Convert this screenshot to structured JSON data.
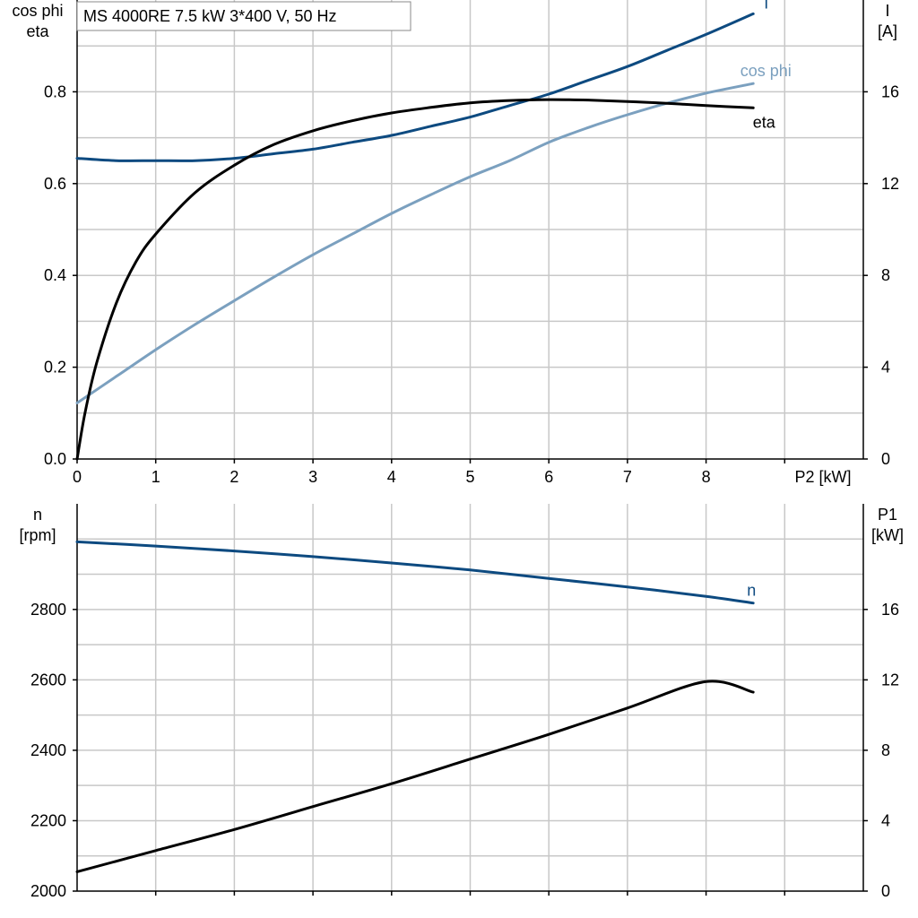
{
  "title": "MS 4000RE   7.5 kW   3*400 V, 50 Hz",
  "colors": {
    "I": "#0d4a80",
    "cos_phi": "#7ba0bf",
    "eta": "#000000",
    "n": "#0d4a80",
    "P1": "#000000"
  },
  "chart_data": [
    {
      "type": "line",
      "x_axis": {
        "label": "P2 [kW]",
        "ticks": [
          "0",
          "1",
          "2",
          "3",
          "4",
          "5",
          "6",
          "7",
          "8"
        ],
        "range": [
          0,
          10
        ]
      },
      "y_left": {
        "label_line1": "cos phi",
        "label_line2": "eta",
        "ticks": [
          "0.0",
          "0.2",
          "0.4",
          "0.6",
          "0.8"
        ],
        "range": [
          0,
          1.0
        ]
      },
      "y_right": {
        "label_line1": "I",
        "label_line2": "[A]",
        "ticks": [
          "0",
          "4",
          "8",
          "12",
          "16"
        ],
        "range": [
          0,
          20
        ]
      },
      "grid": true,
      "series": [
        {
          "name": "I",
          "axis": "right",
          "x": [
            0,
            0.5,
            1,
            1.5,
            2,
            2.5,
            3,
            3.5,
            4,
            4.5,
            5,
            5.5,
            6,
            6.5,
            7,
            7.5,
            8,
            8.6
          ],
          "y": [
            13.1,
            13.0,
            13.0,
            13.0,
            13.1,
            13.3,
            13.5,
            13.8,
            14.1,
            14.5,
            14.9,
            15.4,
            15.9,
            16.5,
            17.1,
            17.8,
            18.5,
            19.4
          ]
        },
        {
          "name": "cos phi",
          "axis": "left",
          "x": [
            0,
            0.5,
            1,
            1.5,
            2,
            2.5,
            3,
            3.5,
            4,
            4.5,
            5,
            5.5,
            6,
            6.5,
            7,
            7.5,
            8,
            8.6
          ],
          "y": [
            0.122,
            0.18,
            0.238,
            0.293,
            0.345,
            0.396,
            0.445,
            0.49,
            0.535,
            0.576,
            0.615,
            0.65,
            0.69,
            0.722,
            0.75,
            0.775,
            0.797,
            0.818
          ]
        },
        {
          "name": "eta",
          "axis": "left",
          "x": [
            0,
            0.1,
            0.25,
            0.5,
            0.75,
            1,
            1.5,
            2,
            2.5,
            3,
            3.5,
            4,
            4.5,
            5,
            5.5,
            6,
            6.5,
            7,
            7.5,
            8,
            8.6
          ],
          "y": [
            0.0,
            0.1,
            0.21,
            0.34,
            0.43,
            0.49,
            0.58,
            0.64,
            0.685,
            0.715,
            0.737,
            0.754,
            0.766,
            0.776,
            0.781,
            0.783,
            0.782,
            0.779,
            0.775,
            0.77,
            0.765
          ]
        }
      ]
    },
    {
      "type": "line",
      "x_axis": {
        "label": "",
        "ticks": [],
        "range": [
          0,
          10
        ]
      },
      "y_left": {
        "label_line1": "n",
        "label_line2": "[rpm]",
        "ticks": [
          "2000",
          "2200",
          "2400",
          "2600",
          "2800"
        ],
        "range": [
          2000,
          3100
        ]
      },
      "y_right": {
        "label_line1": "P1",
        "label_line2": "[kW]",
        "ticks": [
          "0",
          "4",
          "8",
          "12",
          "16"
        ],
        "range": [
          0,
          22
        ]
      },
      "grid": true,
      "series": [
        {
          "name": "n",
          "axis": "left",
          "x": [
            0,
            1,
            2,
            3,
            4,
            5,
            6,
            7,
            8,
            8.6
          ],
          "y": [
            2992,
            2980,
            2966,
            2950,
            2932,
            2912,
            2888,
            2864,
            2837,
            2818
          ]
        },
        {
          "name": "P1",
          "axis": "right",
          "x": [
            0,
            1,
            2,
            3,
            4,
            5,
            6,
            7,
            8,
            8.6
          ],
          "y": [
            1.1,
            2.3,
            3.5,
            4.8,
            6.1,
            7.5,
            8.9,
            10.4,
            11.9,
            11.3
          ]
        }
      ]
    }
  ]
}
